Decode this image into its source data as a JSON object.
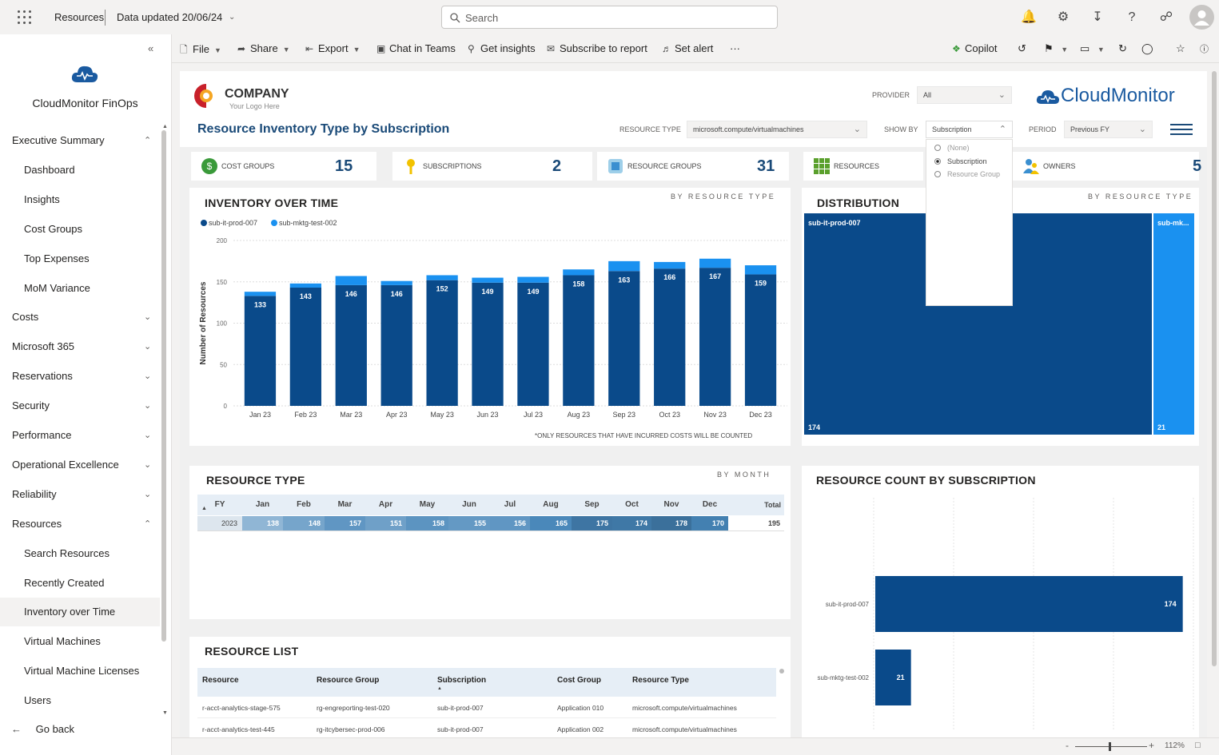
{
  "topbar": {
    "workspace": "Resources",
    "data_updated": "Data updated 20/06/24",
    "search_placeholder": "Search"
  },
  "sidebar": {
    "app_title": "CloudMonitor FinOps",
    "items": [
      {
        "label": "Executive Summary",
        "level": 0,
        "chevron": "up"
      },
      {
        "label": "Dashboard",
        "level": 1
      },
      {
        "label": "Insights",
        "level": 1
      },
      {
        "label": "Cost Groups",
        "level": 1
      },
      {
        "label": "Top Expenses",
        "level": 1
      },
      {
        "label": "MoM Variance",
        "level": 1
      },
      {
        "label": "Costs",
        "level": 0,
        "chevron": "down"
      },
      {
        "label": "Microsoft 365",
        "level": 0,
        "chevron": "down"
      },
      {
        "label": "Reservations",
        "level": 0,
        "chevron": "down"
      },
      {
        "label": "Security",
        "level": 0,
        "chevron": "down"
      },
      {
        "label": "Performance",
        "level": 0,
        "chevron": "down"
      },
      {
        "label": "Operational Excellence",
        "level": 0,
        "chevron": "down"
      },
      {
        "label": "Reliability",
        "level": 0,
        "chevron": "down"
      },
      {
        "label": "Resources",
        "level": 0,
        "chevron": "up"
      },
      {
        "label": "Search Resources",
        "level": 1
      },
      {
        "label": "Recently Created",
        "level": 1
      },
      {
        "label": "Inventory over Time",
        "level": 1,
        "active": true
      },
      {
        "label": "Virtual Machines",
        "level": 1
      },
      {
        "label": "Virtual Machine Licenses",
        "level": 1
      },
      {
        "label": "Users",
        "level": 1
      }
    ],
    "go_back": "Go back"
  },
  "ribbon": {
    "file": "File",
    "share": "Share",
    "export": "Export",
    "chat": "Chat in Teams",
    "insights": "Get insights",
    "subscribe": "Subscribe to report",
    "alert": "Set alert",
    "more": "···",
    "copilot": "Copilot"
  },
  "report": {
    "company_name": "COMPANY",
    "company_tagline": "Your Logo Here",
    "brand": "CloudMonitor",
    "title": "Resource Inventory Type by Subscription",
    "slicers": {
      "provider_label": "PROVIDER",
      "provider_value": "All",
      "resource_type_label": "RESOURCE TYPE",
      "resource_type_value": "microsoft.compute/virtualmachines",
      "show_by_label": "SHOW BY",
      "show_by_value": "Subscription",
      "show_by_options": [
        "(None)",
        "Subscription",
        "Resource Group"
      ],
      "period_label": "PERIOD",
      "period_value": "Previous FY"
    },
    "kpis": [
      {
        "label": "COST GROUPS",
        "value": "15",
        "icon": "dollar-icon"
      },
      {
        "label": "SUBSCRIPTIONS",
        "value": "2",
        "icon": "key-icon"
      },
      {
        "label": "RESOURCE GROUPS",
        "value": "31",
        "icon": "cube-icon"
      },
      {
        "label": "RESOURCES",
        "value": "",
        "icon": "grid-icon"
      },
      {
        "label": "OWNERS",
        "value": "5",
        "icon": "people-icon"
      }
    ],
    "inventory": {
      "title": "INVENTORY OVER TIME",
      "by": "BY RESOURCE TYPE",
      "footnote": "*ONLY RESOURCES THAT HAVE INCURRED COSTS WILL BE COUNTED"
    },
    "distribution": {
      "title": "DISTRIBUTION",
      "by": "BY RESOURCE TYPE",
      "tiles": [
        {
          "name": "sub-it-prod-007",
          "value": "174"
        },
        {
          "name": "sub-mk...",
          "value": "21"
        }
      ]
    },
    "resource_type": {
      "title": "RESOURCE TYPE",
      "by": "BY MONTH",
      "headers": [
        "FY",
        "Jan",
        "Feb",
        "Mar",
        "Apr",
        "May",
        "Jun",
        "Jul",
        "Aug",
        "Sep",
        "Oct",
        "Nov",
        "Dec",
        "Total"
      ],
      "row": [
        "2023",
        "138",
        "148",
        "157",
        "151",
        "158",
        "155",
        "156",
        "165",
        "175",
        "174",
        "178",
        "170",
        "195"
      ]
    },
    "count_by_sub": {
      "title": "RESOURCE COUNT BY SUBSCRIPTION"
    },
    "resource_list": {
      "title": "RESOURCE LIST",
      "headers": [
        "Resource",
        "Resource Group",
        "Subscription",
        "Cost Group",
        "Resource Type"
      ],
      "rows": [
        [
          "r-acct-analytics-stage-575",
          "rg-engreporting-test-020",
          "sub-it-prod-007",
          "Application 010",
          "microsoft.compute/virtualmachines"
        ],
        [
          "r-acct-analytics-test-445",
          "rg-itcybersec-prod-006",
          "sub-it-prod-007",
          "Application 002",
          "microsoft.compute/virtualmachines"
        ]
      ]
    }
  },
  "status": {
    "zoom": "112%"
  },
  "colors": {
    "dark": "#0a4a8a",
    "light": "#1a91f0",
    "title": "#1a4a78"
  },
  "chart_data": [
    {
      "type": "bar",
      "stacked": true,
      "title": "INVENTORY OVER TIME",
      "ylabel": "Number of Resources",
      "xlabel": "",
      "ylim": [
        0,
        200
      ],
      "yticks": [
        0,
        50,
        100,
        150,
        200
      ],
      "categories": [
        "Jan 23",
        "Feb 23",
        "Mar 23",
        "Apr 23",
        "May 23",
        "Jun 23",
        "Jul 23",
        "Aug 23",
        "Sep 23",
        "Oct 23",
        "Nov 23",
        "Dec 23"
      ],
      "series": [
        {
          "name": "sub-it-prod-007",
          "color": "#0a4a8a",
          "values": [
            133,
            143,
            146,
            146,
            152,
            149,
            149,
            158,
            163,
            166,
            167,
            159
          ]
        },
        {
          "name": "sub-mktg-test-002",
          "color": "#1a91f0",
          "values": [
            5,
            5,
            11,
            5,
            6,
            6,
            7,
            7,
            12,
            8,
            11,
            11
          ]
        }
      ],
      "legend": "top-left",
      "grid": true
    },
    {
      "type": "bar",
      "orientation": "horizontal",
      "title": "RESOURCE COUNT BY SUBSCRIPTION",
      "categories": [
        "sub-it-prod-007",
        "sub-mktg-test-002"
      ],
      "values": [
        174,
        21
      ],
      "xlim": [
        0,
        180
      ],
      "grid": true
    }
  ]
}
